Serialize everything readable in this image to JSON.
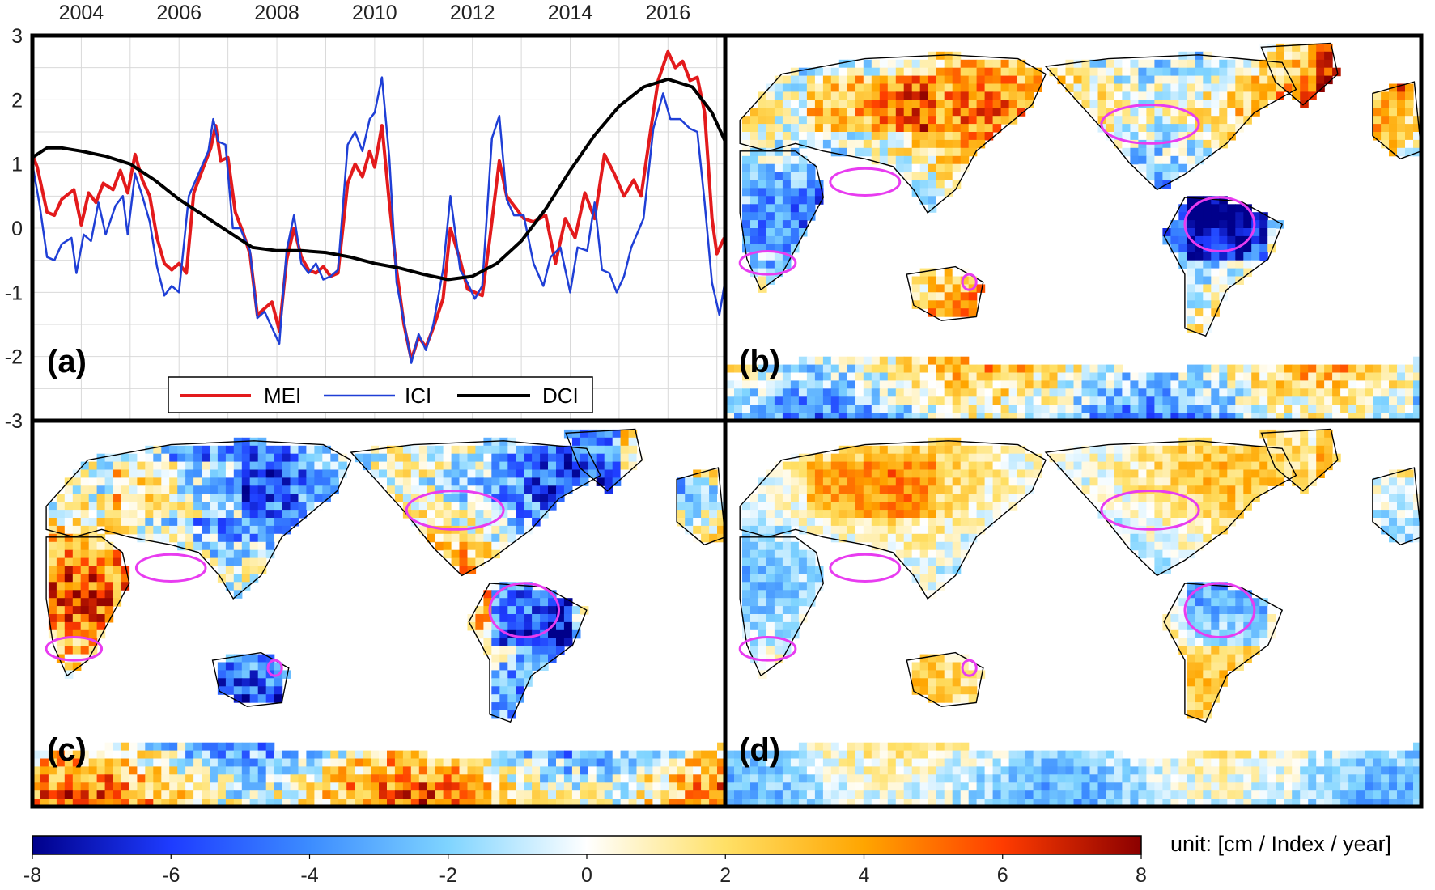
{
  "chart_data": [
    {
      "panel": "(a)",
      "type": "line",
      "title": "",
      "xlabel": "",
      "ylabel": "",
      "xlim": [
        2003.0,
        2017.17
      ],
      "ylim": [
        -3,
        3
      ],
      "x_tick_labels": [
        "2004",
        "2006",
        "2008",
        "2010",
        "2012",
        "2014",
        "2016"
      ],
      "y_tick_labels": [
        "3",
        "2",
        "1",
        "0",
        "-1",
        "-2",
        "-3"
      ],
      "grid": true,
      "legend_position": "bottom-center",
      "series": [
        {
          "name": "MEI",
          "color": "#e31a1c",
          "points": [
            [
              2003.0,
              1.15
            ],
            [
              2003.1,
              0.95
            ],
            [
              2003.3,
              0.25
            ],
            [
              2003.45,
              0.2
            ],
            [
              2003.6,
              0.45
            ],
            [
              2003.85,
              0.6
            ],
            [
              2004.0,
              0.05
            ],
            [
              2004.15,
              0.55
            ],
            [
              2004.3,
              0.4
            ],
            [
              2004.45,
              0.7
            ],
            [
              2004.65,
              0.6
            ],
            [
              2004.8,
              0.9
            ],
            [
              2004.95,
              0.55
            ],
            [
              2005.1,
              1.15
            ],
            [
              2005.25,
              0.75
            ],
            [
              2005.4,
              0.5
            ],
            [
              2005.55,
              -0.15
            ],
            [
              2005.7,
              -0.55
            ],
            [
              2005.85,
              -0.65
            ],
            [
              2006.0,
              -0.55
            ],
            [
              2006.15,
              -0.7
            ],
            [
              2006.3,
              0.55
            ],
            [
              2006.5,
              0.95
            ],
            [
              2006.65,
              1.25
            ],
            [
              2006.75,
              1.6
            ],
            [
              2006.85,
              1.05
            ],
            [
              2007.0,
              1.1
            ],
            [
              2007.15,
              0.25
            ],
            [
              2007.3,
              -0.05
            ],
            [
              2007.45,
              -0.4
            ],
            [
              2007.6,
              -1.35
            ],
            [
              2007.75,
              -1.25
            ],
            [
              2007.9,
              -1.15
            ],
            [
              2008.05,
              -1.6
            ],
            [
              2008.2,
              -0.5
            ],
            [
              2008.35,
              0.0
            ],
            [
              2008.5,
              -0.45
            ],
            [
              2008.65,
              -0.65
            ],
            [
              2008.8,
              -0.7
            ],
            [
              2008.95,
              -0.6
            ],
            [
              2009.1,
              -0.75
            ],
            [
              2009.25,
              -0.7
            ],
            [
              2009.45,
              0.7
            ],
            [
              2009.6,
              1.0
            ],
            [
              2009.75,
              0.8
            ],
            [
              2009.9,
              1.2
            ],
            [
              2010.0,
              0.95
            ],
            [
              2010.15,
              1.6
            ],
            [
              2010.3,
              0.4
            ],
            [
              2010.45,
              -0.65
            ],
            [
              2010.6,
              -1.5
            ],
            [
              2010.75,
              -2.05
            ],
            [
              2010.9,
              -1.7
            ],
            [
              2011.05,
              -1.85
            ],
            [
              2011.2,
              -1.55
            ],
            [
              2011.4,
              -1.1
            ],
            [
              2011.55,
              0.0
            ],
            [
              2011.75,
              -0.5
            ],
            [
              2011.9,
              -0.95
            ],
            [
              2012.05,
              -1.0
            ],
            [
              2012.2,
              -1.05
            ],
            [
              2012.35,
              -0.2
            ],
            [
              2012.55,
              1.05
            ],
            [
              2012.7,
              0.5
            ],
            [
              2012.85,
              0.35
            ],
            [
              2013.05,
              0.15
            ],
            [
              2013.25,
              0.1
            ],
            [
              2013.5,
              0.2
            ],
            [
              2013.7,
              -0.55
            ],
            [
              2013.9,
              0.15
            ],
            [
              2014.1,
              -0.15
            ],
            [
              2014.3,
              0.55
            ],
            [
              2014.5,
              0.15
            ],
            [
              2014.7,
              1.15
            ],
            [
              2014.9,
              0.85
            ],
            [
              2015.1,
              0.5
            ],
            [
              2015.3,
              0.75
            ],
            [
              2015.45,
              0.5
            ],
            [
              2015.65,
              1.55
            ],
            [
              2015.8,
              2.3
            ],
            [
              2016.0,
              2.75
            ],
            [
              2016.15,
              2.5
            ],
            [
              2016.3,
              2.6
            ],
            [
              2016.45,
              2.3
            ],
            [
              2016.6,
              2.35
            ],
            [
              2016.75,
              1.8
            ],
            [
              2016.9,
              0.15
            ],
            [
              2017.0,
              -0.4
            ],
            [
              2017.15,
              -0.15
            ]
          ]
        },
        {
          "name": "ICI",
          "color": "#1f3fd6",
          "points": [
            [
              2003.0,
              1.0
            ],
            [
              2003.15,
              0.35
            ],
            [
              2003.3,
              -0.45
            ],
            [
              2003.45,
              -0.5
            ],
            [
              2003.6,
              -0.25
            ],
            [
              2003.8,
              -0.15
            ],
            [
              2003.9,
              -0.7
            ],
            [
              2004.05,
              -0.1
            ],
            [
              2004.2,
              -0.2
            ],
            [
              2004.35,
              0.4
            ],
            [
              2004.5,
              -0.1
            ],
            [
              2004.7,
              0.35
            ],
            [
              2004.85,
              0.5
            ],
            [
              2004.95,
              -0.1
            ],
            [
              2005.1,
              0.85
            ],
            [
              2005.25,
              0.5
            ],
            [
              2005.4,
              0.1
            ],
            [
              2005.55,
              -0.6
            ],
            [
              2005.7,
              -1.05
            ],
            [
              2005.85,
              -0.9
            ],
            [
              2006.0,
              -1.0
            ],
            [
              2006.2,
              0.5
            ],
            [
              2006.4,
              0.85
            ],
            [
              2006.6,
              1.2
            ],
            [
              2006.7,
              1.7
            ],
            [
              2006.8,
              1.35
            ],
            [
              2006.95,
              1.3
            ],
            [
              2007.1,
              0.0
            ],
            [
              2007.25,
              0.0
            ],
            [
              2007.45,
              -0.35
            ],
            [
              2007.6,
              -1.4
            ],
            [
              2007.75,
              -1.3
            ],
            [
              2007.9,
              -1.55
            ],
            [
              2008.05,
              -1.8
            ],
            [
              2008.2,
              -0.35
            ],
            [
              2008.35,
              0.2
            ],
            [
              2008.5,
              -0.55
            ],
            [
              2008.65,
              -0.7
            ],
            [
              2008.8,
              -0.55
            ],
            [
              2008.95,
              -0.8
            ],
            [
              2009.1,
              -0.75
            ],
            [
              2009.25,
              -0.65
            ],
            [
              2009.45,
              1.3
            ],
            [
              2009.6,
              1.5
            ],
            [
              2009.75,
              1.2
            ],
            [
              2009.9,
              1.7
            ],
            [
              2010.0,
              1.8
            ],
            [
              2010.15,
              2.35
            ],
            [
              2010.3,
              1.1
            ],
            [
              2010.45,
              -0.85
            ],
            [
              2010.6,
              -1.45
            ],
            [
              2010.75,
              -2.1
            ],
            [
              2010.9,
              -1.65
            ],
            [
              2011.05,
              -1.9
            ],
            [
              2011.2,
              -1.5
            ],
            [
              2011.4,
              -0.65
            ],
            [
              2011.55,
              0.5
            ],
            [
              2011.75,
              -0.65
            ],
            [
              2011.9,
              -0.85
            ],
            [
              2012.05,
              -1.1
            ],
            [
              2012.2,
              -0.9
            ],
            [
              2012.4,
              1.4
            ],
            [
              2012.55,
              1.75
            ],
            [
              2012.7,
              0.45
            ],
            [
              2012.85,
              0.2
            ],
            [
              2013.05,
              0.2
            ],
            [
              2013.25,
              -0.55
            ],
            [
              2013.45,
              -0.9
            ],
            [
              2013.6,
              -0.45
            ],
            [
              2013.8,
              -0.3
            ],
            [
              2014.0,
              -1.0
            ],
            [
              2014.15,
              -0.3
            ],
            [
              2014.35,
              -0.35
            ],
            [
              2014.5,
              0.4
            ],
            [
              2014.65,
              -0.65
            ],
            [
              2014.8,
              -0.7
            ],
            [
              2014.95,
              -1.0
            ],
            [
              2015.1,
              -0.75
            ],
            [
              2015.25,
              -0.3
            ],
            [
              2015.5,
              0.15
            ],
            [
              2015.7,
              1.55
            ],
            [
              2015.9,
              2.1
            ],
            [
              2016.05,
              1.7
            ],
            [
              2016.25,
              1.7
            ],
            [
              2016.45,
              1.55
            ],
            [
              2016.6,
              1.5
            ],
            [
              2016.75,
              0.4
            ],
            [
              2016.9,
              -0.85
            ],
            [
              2017.05,
              -1.35
            ],
            [
              2017.15,
              -0.9
            ]
          ]
        },
        {
          "name": "DCI",
          "color": "#000000",
          "points": [
            [
              2003.0,
              1.1
            ],
            [
              2003.3,
              1.25
            ],
            [
              2003.6,
              1.25
            ],
            [
              2004.0,
              1.2
            ],
            [
              2004.5,
              1.12
            ],
            [
              2005.0,
              1.0
            ],
            [
              2005.5,
              0.75
            ],
            [
              2006.0,
              0.45
            ],
            [
              2006.5,
              0.2
            ],
            [
              2007.0,
              -0.05
            ],
            [
              2007.5,
              -0.3
            ],
            [
              2008.0,
              -0.35
            ],
            [
              2008.5,
              -0.35
            ],
            [
              2009.0,
              -0.38
            ],
            [
              2009.5,
              -0.45
            ],
            [
              2010.0,
              -0.55
            ],
            [
              2010.5,
              -0.62
            ],
            [
              2011.0,
              -0.72
            ],
            [
              2011.5,
              -0.8
            ],
            [
              2012.0,
              -0.75
            ],
            [
              2012.5,
              -0.55
            ],
            [
              2013.0,
              -0.2
            ],
            [
              2013.5,
              0.3
            ],
            [
              2014.0,
              0.9
            ],
            [
              2014.5,
              1.45
            ],
            [
              2015.0,
              1.9
            ],
            [
              2015.5,
              2.2
            ],
            [
              2016.0,
              2.32
            ],
            [
              2016.5,
              2.2
            ],
            [
              2016.9,
              1.8
            ],
            [
              2017.17,
              1.35
            ]
          ]
        }
      ]
    },
    {
      "panel": "(b)",
      "type": "heatmap",
      "description_values": "gridded global map of regression coefficients (MEI)",
      "colormap_range": [
        -8,
        8
      ]
    },
    {
      "panel": "(c)",
      "type": "heatmap",
      "description_values": "gridded global map of regression coefficients (ICI)",
      "colormap_range": [
        -8,
        8
      ]
    },
    {
      "panel": "(d)",
      "type": "heatmap",
      "description_values": "gridded global map of regression coefficients (DCI)",
      "colormap_range": [
        -8,
        8
      ]
    }
  ],
  "colorbar": {
    "min": -8,
    "max": 8,
    "tick_labels": [
      "-8",
      "-6",
      "-4",
      "-2",
      "0",
      "2",
      "4",
      "6",
      "8"
    ],
    "unit_label": "unit: [cm / Index / year]",
    "stops": [
      "#00008b",
      "#1e3cff",
      "#3c8cff",
      "#7fd4ff",
      "#ffffff",
      "#ffe066",
      "#ffa500",
      "#ff3c00",
      "#8b0000"
    ]
  },
  "panels": {
    "a_label": "(a)",
    "b_label": "(b)",
    "c_label": "(c)",
    "d_label": "(d)"
  },
  "colors": {
    "basin_outline": "#e83cf0",
    "coastline": "#000000"
  }
}
